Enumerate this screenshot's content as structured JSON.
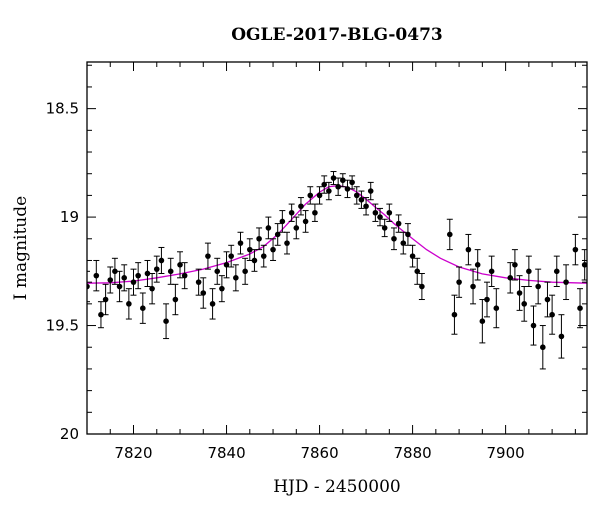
{
  "chart_data": {
    "type": "scatter",
    "title": "OGLE-2017-BLG-0473",
    "xlabel": "HJD - 2450000",
    "ylabel": "I magnitude",
    "xlim": [
      7810,
      7917.5
    ],
    "ylim": [
      20.0,
      18.285
    ],
    "y_inverted": true,
    "x_ticks": [
      7820,
      7840,
      7860,
      7880,
      7900
    ],
    "y_ticks": [
      18.5,
      19,
      19.5,
      20
    ],
    "y_tick_labels": [
      "18.5",
      "19",
      "19.5",
      "20"
    ],
    "grid": false,
    "colors": {
      "points": "#000000",
      "model": "#cc00cc"
    },
    "model": {
      "name": "",
      "x": [
        7810,
        7815,
        7820,
        7825,
        7830,
        7835,
        7840,
        7845,
        7848,
        7851,
        7854,
        7857,
        7860,
        7862,
        7864,
        7866,
        7868,
        7870,
        7872,
        7874,
        7876,
        7878,
        7880,
        7883,
        7886,
        7890,
        7895,
        7900,
        7905,
        7910,
        7917.5
      ],
      "y": [
        19.305,
        19.303,
        19.295,
        19.28,
        19.262,
        19.24,
        19.21,
        19.17,
        19.135,
        19.08,
        19.01,
        18.94,
        18.885,
        18.86,
        18.855,
        18.862,
        18.885,
        18.918,
        18.955,
        18.99,
        19.03,
        19.065,
        19.1,
        19.15,
        19.19,
        19.23,
        19.262,
        19.28,
        19.292,
        19.3,
        19.305
      ]
    },
    "series": [
      {
        "name": "",
        "x": [
          7810,
          7812,
          7813,
          7814,
          7815,
          7816,
          7817,
          7818,
          7819,
          7820,
          7821,
          7822,
          7823,
          7824,
          7825,
          7826,
          7827,
          7828,
          7829,
          7830,
          7831,
          7834,
          7835,
          7836,
          7837,
          7838,
          7839,
          7840,
          7841,
          7842,
          7843,
          7844,
          7845,
          7846,
          7847,
          7848,
          7849,
          7850,
          7851,
          7852,
          7853,
          7854,
          7855,
          7856,
          7857,
          7858,
          7859,
          7860,
          7861,
          7862,
          7863,
          7864,
          7865,
          7866,
          7867,
          7868,
          7869,
          7870,
          7871,
          7872,
          7873,
          7874,
          7875,
          7876,
          7877,
          7878,
          7879,
          7880,
          7881,
          7882,
          7888,
          7889,
          7890,
          7892,
          7893,
          7894,
          7895,
          7896,
          7897,
          7898,
          7901,
          7902,
          7903,
          7904,
          7905,
          7906,
          7907,
          7908,
          7909,
          7910,
          7911,
          7912,
          7913,
          7915,
          7916,
          7917
        ],
        "y": [
          19.32,
          19.27,
          19.45,
          19.38,
          19.29,
          19.25,
          19.32,
          19.28,
          19.4,
          19.3,
          19.27,
          19.42,
          19.26,
          19.33,
          19.24,
          19.2,
          19.48,
          19.25,
          19.38,
          19.22,
          19.27,
          19.3,
          19.35,
          19.18,
          19.4,
          19.25,
          19.33,
          19.22,
          19.18,
          19.28,
          19.12,
          19.25,
          19.15,
          19.2,
          19.1,
          19.18,
          19.05,
          19.15,
          19.08,
          19.02,
          19.12,
          18.98,
          19.05,
          18.95,
          19.02,
          18.9,
          18.98,
          18.9,
          18.85,
          18.88,
          18.82,
          18.86,
          18.83,
          18.87,
          18.84,
          18.9,
          18.92,
          18.95,
          18.88,
          18.98,
          19.0,
          19.05,
          18.98,
          19.1,
          19.03,
          19.12,
          19.08,
          19.18,
          19.25,
          19.32,
          19.08,
          19.45,
          19.3,
          19.15,
          19.32,
          19.22,
          19.48,
          19.38,
          19.25,
          19.42,
          19.28,
          19.22,
          19.35,
          19.4,
          19.25,
          19.5,
          19.32,
          19.6,
          19.38,
          19.45,
          19.25,
          19.55,
          19.3,
          19.15,
          19.42,
          19.22
        ],
        "yerr": [
          0.07,
          0.07,
          0.06,
          0.07,
          0.06,
          0.06,
          0.07,
          0.06,
          0.07,
          0.06,
          0.06,
          0.07,
          0.06,
          0.07,
          0.06,
          0.06,
          0.08,
          0.06,
          0.07,
          0.06,
          0.06,
          0.06,
          0.07,
          0.06,
          0.07,
          0.06,
          0.06,
          0.06,
          0.05,
          0.06,
          0.05,
          0.06,
          0.05,
          0.05,
          0.05,
          0.05,
          0.05,
          0.05,
          0.05,
          0.05,
          0.05,
          0.04,
          0.05,
          0.04,
          0.05,
          0.04,
          0.04,
          0.04,
          0.04,
          0.04,
          0.03,
          0.04,
          0.03,
          0.04,
          0.03,
          0.04,
          0.04,
          0.04,
          0.04,
          0.04,
          0.04,
          0.04,
          0.04,
          0.05,
          0.04,
          0.05,
          0.05,
          0.05,
          0.06,
          0.06,
          0.07,
          0.09,
          0.07,
          0.07,
          0.08,
          0.07,
          0.1,
          0.08,
          0.07,
          0.09,
          0.07,
          0.07,
          0.08,
          0.08,
          0.07,
          0.09,
          0.08,
          0.1,
          0.08,
          0.09,
          0.07,
          0.1,
          0.08,
          0.07,
          0.09,
          0.07
        ]
      }
    ]
  }
}
